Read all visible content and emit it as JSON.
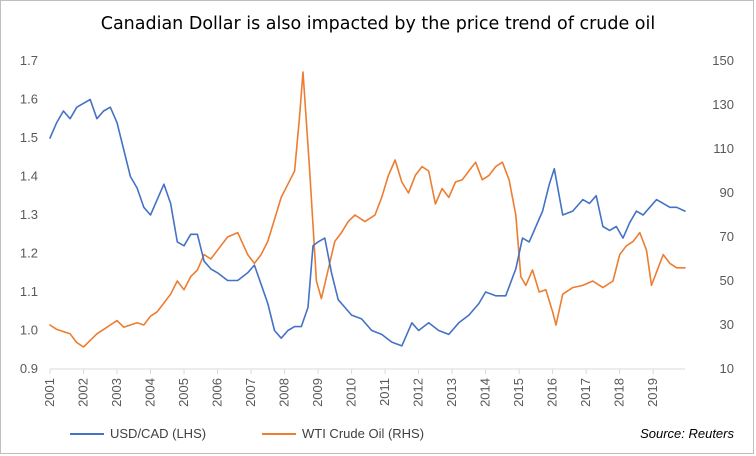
{
  "chart_data": {
    "type": "line",
    "title": "Canadian Dollar is also impacted by the price trend of crude oil",
    "source": "Source: Reuters",
    "x_ticks": [
      "2001",
      "2002",
      "2003",
      "2004",
      "2005",
      "2006",
      "2007",
      "2008",
      "2009",
      "2010",
      "2011",
      "2012",
      "2013",
      "2014",
      "2015",
      "2016",
      "2017",
      "2018",
      "2019"
    ],
    "xlim": [
      2001.0,
      2019.95
    ],
    "y_left": {
      "ticks": [
        "0.9",
        "1.0",
        "1.1",
        "1.2",
        "1.3",
        "1.4",
        "1.5",
        "1.6",
        "1.7"
      ],
      "ylim": [
        0.9,
        1.7
      ]
    },
    "y_right": {
      "ticks": [
        "10",
        "30",
        "50",
        "70",
        "90",
        "110",
        "130",
        "150"
      ],
      "ylim": [
        10,
        150
      ]
    },
    "grid": false,
    "legend": "bottom-left",
    "series": [
      {
        "name": "USD/CAD (LHS)",
        "axis": "left",
        "color": "#4472C4",
        "x": [
          2001.0,
          2001.2,
          2001.4,
          2001.6,
          2001.8,
          2002.0,
          2002.2,
          2002.4,
          2002.6,
          2002.8,
          2003.0,
          2003.2,
          2003.4,
          2003.6,
          2003.8,
          2004.0,
          2004.2,
          2004.4,
          2004.6,
          2004.8,
          2005.0,
          2005.2,
          2005.4,
          2005.6,
          2005.8,
          2006.0,
          2006.3,
          2006.6,
          2006.9,
          2007.1,
          2007.3,
          2007.5,
          2007.7,
          2007.9,
          2008.1,
          2008.3,
          2008.5,
          2008.7,
          2008.85,
          2009.0,
          2009.2,
          2009.4,
          2009.6,
          2009.8,
          2010.0,
          2010.3,
          2010.6,
          2010.9,
          2011.2,
          2011.5,
          2011.8,
          2012.0,
          2012.3,
          2012.6,
          2012.9,
          2013.2,
          2013.5,
          2013.8,
          2014.0,
          2014.3,
          2014.6,
          2014.9,
          2015.1,
          2015.3,
          2015.5,
          2015.7,
          2015.9,
          2016.05,
          2016.3,
          2016.6,
          2016.9,
          2017.1,
          2017.3,
          2017.5,
          2017.7,
          2017.9,
          2018.1,
          2018.3,
          2018.5,
          2018.7,
          2018.9,
          2019.1,
          2019.3,
          2019.5,
          2019.7,
          2019.95
        ],
        "values": [
          1.5,
          1.54,
          1.57,
          1.55,
          1.58,
          1.59,
          1.6,
          1.55,
          1.57,
          1.58,
          1.54,
          1.47,
          1.4,
          1.37,
          1.32,
          1.3,
          1.34,
          1.38,
          1.33,
          1.23,
          1.22,
          1.25,
          1.25,
          1.18,
          1.16,
          1.15,
          1.13,
          1.13,
          1.15,
          1.17,
          1.12,
          1.07,
          1.0,
          0.98,
          1.0,
          1.01,
          1.01,
          1.06,
          1.22,
          1.23,
          1.24,
          1.15,
          1.08,
          1.06,
          1.04,
          1.03,
          1.0,
          0.99,
          0.97,
          0.96,
          1.02,
          1.0,
          1.02,
          1.0,
          0.99,
          1.02,
          1.04,
          1.07,
          1.1,
          1.09,
          1.09,
          1.16,
          1.24,
          1.23,
          1.27,
          1.31,
          1.38,
          1.42,
          1.3,
          1.31,
          1.34,
          1.33,
          1.35,
          1.27,
          1.26,
          1.27,
          1.24,
          1.28,
          1.31,
          1.3,
          1.32,
          1.34,
          1.33,
          1.32,
          1.32,
          1.31
        ]
      },
      {
        "name": "WTI Crude Oil (RHS)",
        "axis": "right",
        "color": "#ED7D31",
        "x": [
          2001.0,
          2001.2,
          2001.4,
          2001.6,
          2001.8,
          2002.0,
          2002.2,
          2002.4,
          2002.6,
          2002.8,
          2003.0,
          2003.2,
          2003.4,
          2003.6,
          2003.8,
          2004.0,
          2004.2,
          2004.4,
          2004.6,
          2004.8,
          2005.0,
          2005.2,
          2005.4,
          2005.6,
          2005.8,
          2006.0,
          2006.3,
          2006.6,
          2006.9,
          2007.1,
          2007.3,
          2007.5,
          2007.7,
          2007.9,
          2008.1,
          2008.3,
          2008.45,
          2008.55,
          2008.75,
          2008.95,
          2009.1,
          2009.3,
          2009.5,
          2009.7,
          2009.9,
          2010.1,
          2010.4,
          2010.7,
          2010.9,
          2011.1,
          2011.3,
          2011.5,
          2011.7,
          2011.9,
          2012.1,
          2012.3,
          2012.5,
          2012.7,
          2012.9,
          2013.1,
          2013.3,
          2013.5,
          2013.7,
          2013.9,
          2014.1,
          2014.3,
          2014.5,
          2014.7,
          2014.9,
          2015.05,
          2015.2,
          2015.4,
          2015.6,
          2015.8,
          2016.0,
          2016.1,
          2016.3,
          2016.6,
          2016.9,
          2017.2,
          2017.5,
          2017.8,
          2018.0,
          2018.2,
          2018.4,
          2018.6,
          2018.8,
          2018.95,
          2019.1,
          2019.3,
          2019.5,
          2019.7,
          2019.95
        ],
        "values": [
          30,
          28,
          27,
          26,
          22,
          20,
          23,
          26,
          28,
          30,
          32,
          29,
          30,
          31,
          30,
          34,
          36,
          40,
          44,
          50,
          46,
          52,
          55,
          62,
          60,
          64,
          70,
          72,
          62,
          58,
          62,
          68,
          78,
          88,
          94,
          100,
          125,
          145,
          100,
          50,
          42,
          55,
          68,
          72,
          77,
          80,
          77,
          80,
          88,
          98,
          105,
          95,
          90,
          98,
          102,
          100,
          85,
          92,
          88,
          95,
          96,
          100,
          104,
          96,
          98,
          102,
          104,
          96,
          80,
          52,
          48,
          55,
          45,
          46,
          36,
          30,
          44,
          47,
          48,
          50,
          47,
          50,
          62,
          66,
          68,
          72,
          64,
          48,
          54,
          62,
          58,
          56,
          56
        ]
      }
    ]
  }
}
